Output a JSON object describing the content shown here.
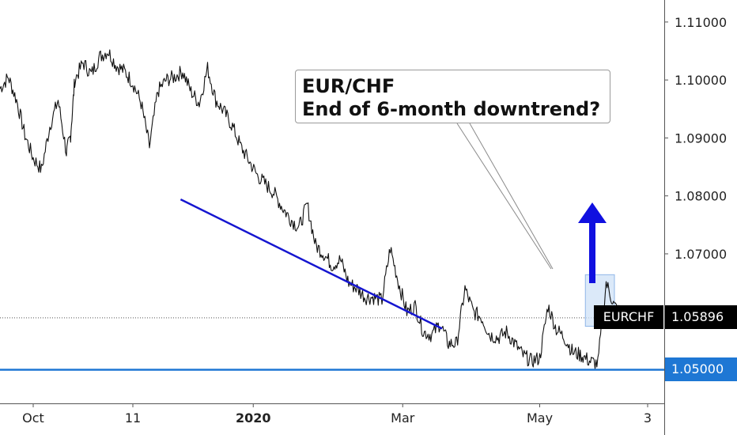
{
  "chart_data": {
    "type": "line",
    "symbol": "EURCHF",
    "title_lines": [
      "EUR/CHF",
      "End of 6-month downtrend?"
    ],
    "last_price": "1.05896",
    "level_label": "1.05000",
    "ylim": [
      1.0442,
      1.1138
    ],
    "y_ticks": [
      "1.11000",
      "1.10000",
      "1.09000",
      "1.08000",
      "1.07000",
      "1.06000",
      "1.05000"
    ],
    "x_tick_labels": [
      "Oct",
      "11",
      "2020",
      "Mar",
      "May",
      "3"
    ],
    "series": [
      {
        "x": [
          0,
          2,
          4,
          6,
          8,
          10,
          12,
          14,
          16,
          17,
          18,
          20,
          22,
          24,
          26,
          28,
          30,
          32,
          34,
          36,
          38,
          40,
          42,
          44,
          46,
          48,
          50,
          52,
          54,
          56,
          58,
          60,
          62,
          64,
          66,
          68,
          70,
          72,
          74,
          76,
          78,
          80,
          82,
          84,
          86,
          88,
          90,
          92,
          94,
          96,
          98,
          100,
          102,
          104,
          106,
          108,
          110,
          112,
          114,
          116,
          118,
          120,
          122,
          124,
          126,
          128,
          130,
          132,
          134,
          136,
          138,
          140,
          142,
          144,
          146,
          148,
          150
        ],
        "y": [
          1.0985,
          1.1005,
          1.0965,
          1.0905,
          1.0865,
          1.0845,
          1.092,
          1.0965,
          1.0875,
          1.0905,
          1.1,
          1.103,
          1.101,
          1.104,
          1.105,
          1.1025,
          1.1015,
          1.0995,
          1.096,
          1.0885,
          1.098,
          1.1,
          1.1005,
          1.1015,
          1.098,
          1.096,
          1.102,
          1.0965,
          1.0945,
          1.092,
          1.0885,
          1.086,
          1.0835,
          1.082,
          1.0805,
          1.078,
          1.076,
          1.0745,
          1.0785,
          1.0715,
          1.07,
          1.068,
          1.069,
          1.065,
          1.064,
          1.0625,
          1.0625,
          1.062,
          1.071,
          1.065,
          1.06,
          1.061,
          1.0565,
          1.056,
          1.058,
          1.0545,
          1.0545,
          1.064,
          1.06,
          1.059,
          1.056,
          1.0555,
          1.0565,
          1.0545,
          1.0525,
          1.0515,
          1.052,
          1.061,
          1.057,
          1.0555,
          1.053,
          1.0525,
          1.0515,
          1.051,
          1.065,
          1.061,
          1.0595
        ]
      }
    ],
    "trendline": {
      "x": [
        43.5,
        106.5
      ],
      "y": [
        1.0794,
        1.0571
      ]
    },
    "support_level": 1.05,
    "colors": {
      "price_line": "#111111",
      "trendline": "#1515d0",
      "support": "#1e77d4",
      "arrow": "#1010e0",
      "highlight": "#cfe1f7"
    }
  }
}
